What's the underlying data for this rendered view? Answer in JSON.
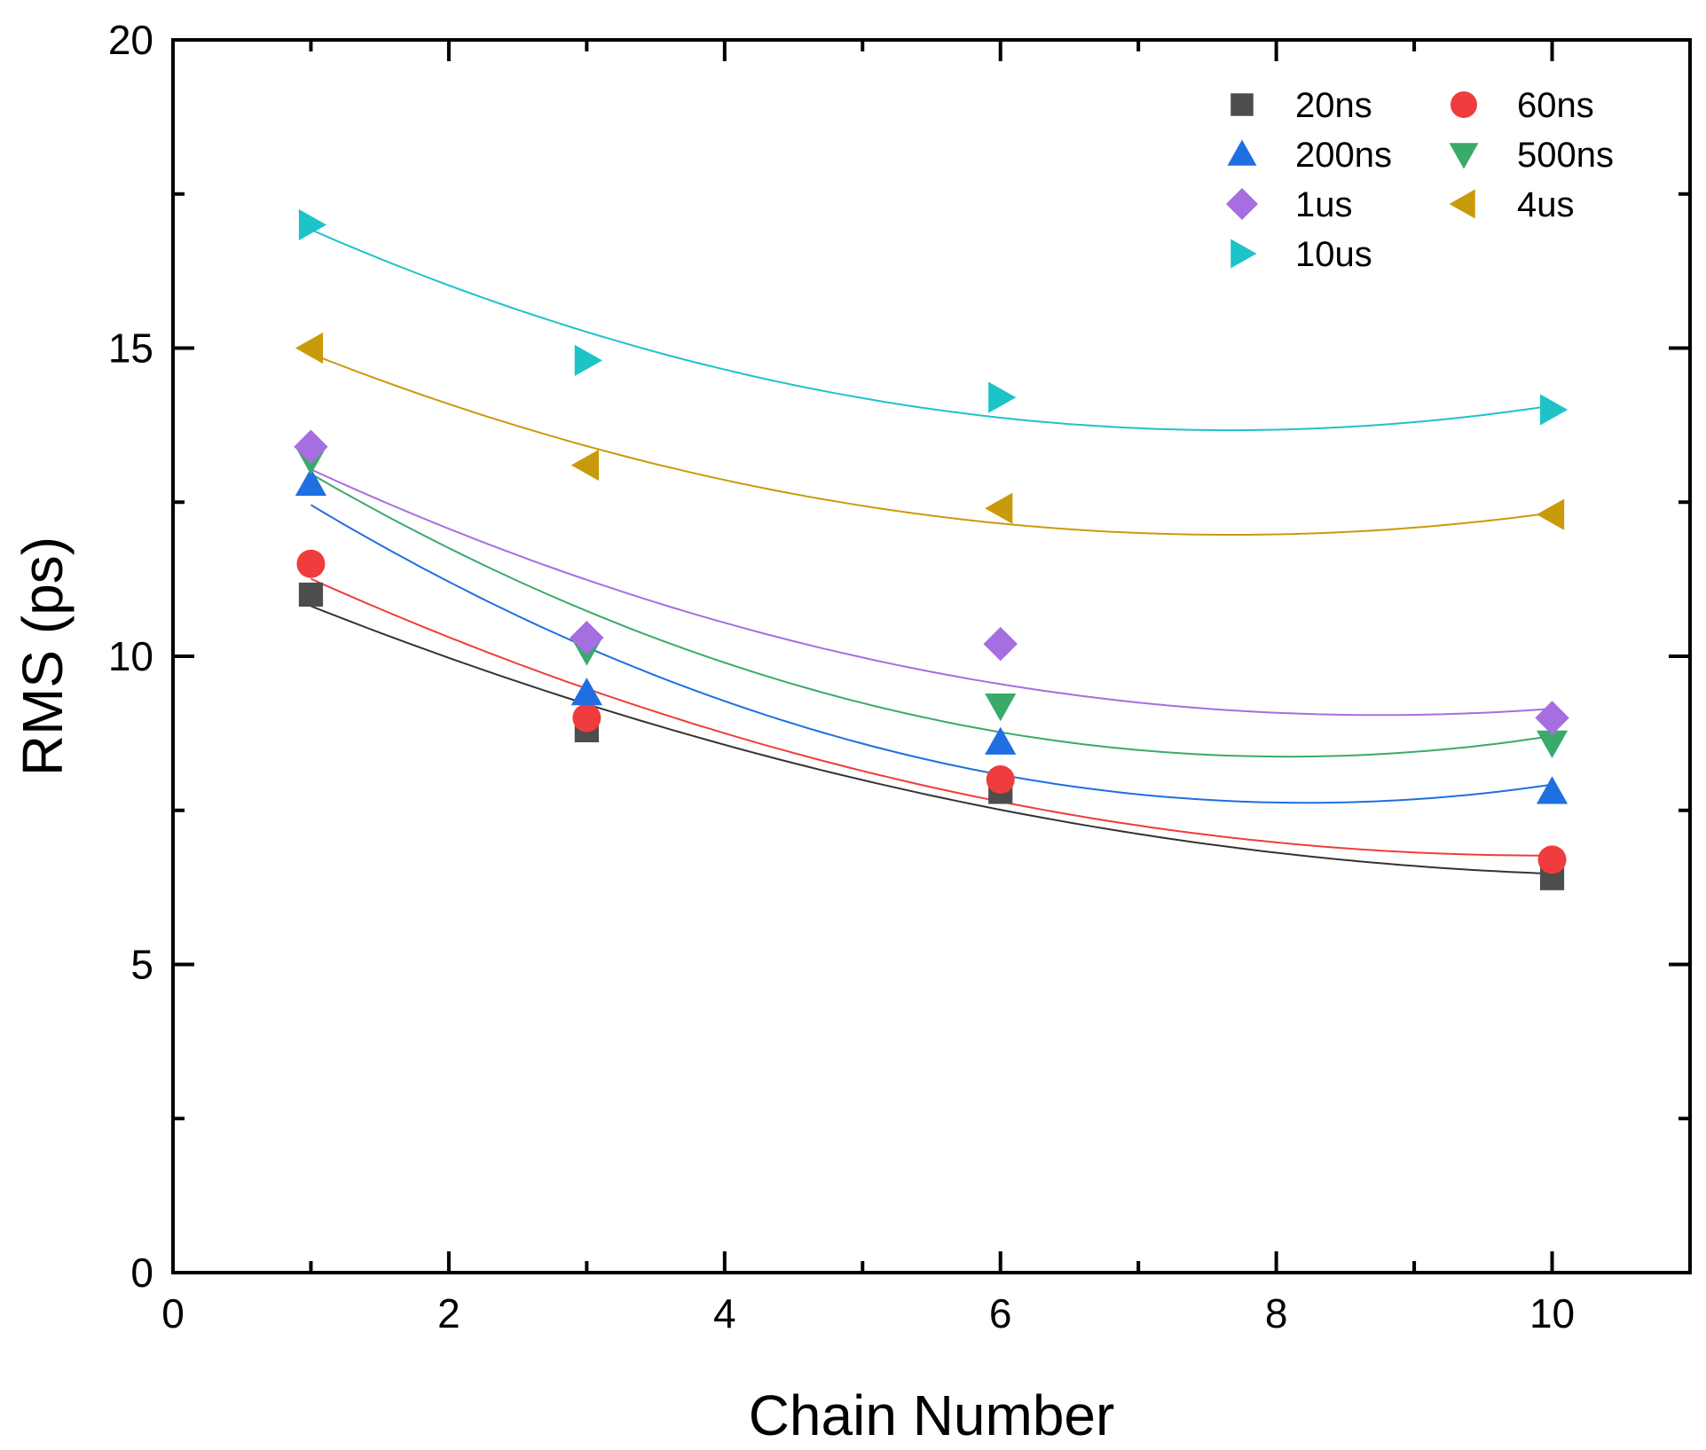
{
  "chart_data": {
    "type": "scatter",
    "title": "",
    "xlabel": "Chain Number",
    "ylabel": "RMS (ps)",
    "xlim": [
      0,
      11
    ],
    "ylim": [
      0,
      20
    ],
    "x_major_ticks": [
      0,
      2,
      4,
      6,
      8,
      10
    ],
    "x_minor_ticks": [
      1,
      3,
      5,
      7,
      9,
      11
    ],
    "y_major_ticks": [
      0,
      5,
      10,
      15,
      20
    ],
    "y_minor_ticks": [
      2.5,
      7.5,
      12.5,
      17.5
    ],
    "grid": false,
    "legend_position": "top-right",
    "x": [
      1,
      3,
      6,
      10
    ],
    "series": [
      {
        "name": "20ns",
        "marker": "square",
        "color": "#4d4d4d",
        "fit_color": "#333333",
        "values": [
          11.0,
          8.8,
          7.8,
          6.4
        ],
        "fit": [
          10.82,
          9.21,
          7.52,
          6.47
        ]
      },
      {
        "name": "60ns",
        "marker": "circle",
        "color": "#f03c3c",
        "fit_color": "#f03c3c",
        "values": [
          11.5,
          9.0,
          8.0,
          6.7
        ],
        "fit": [
          11.25,
          9.49,
          7.63,
          6.77
        ]
      },
      {
        "name": "200ns",
        "marker": "triangle-up",
        "color": "#1f6fe0",
        "fit_color": "#1f6fe0",
        "values": [
          12.8,
          9.4,
          8.6,
          7.8
        ],
        "fit": [
          12.45,
          10.16,
          8.07,
          7.92
        ]
      },
      {
        "name": "500ns",
        "marker": "triangle-down",
        "color": "#3aaa6a",
        "fit_color": "#3aaa6a",
        "values": [
          13.2,
          10.1,
          9.2,
          8.6
        ],
        "fit": [
          12.98,
          10.69,
          8.8,
          8.7
        ]
      },
      {
        "name": "1us",
        "marker": "diamond",
        "color": "#a66ee0",
        "fit_color": "#a66ee0",
        "values": [
          13.4,
          10.3,
          10.2,
          9.0
        ],
        "fit": [
          13.06,
          11.18,
          9.59,
          9.14
        ]
      },
      {
        "name": "4us",
        "marker": "triangle-left",
        "color": "#c99a0a",
        "fit_color": "#c99a0a",
        "values": [
          15.0,
          13.1,
          12.4,
          12.3
        ],
        "fit": [
          14.93,
          13.36,
          12.19,
          12.32
        ]
      },
      {
        "name": "10us",
        "marker": "triangle-right",
        "color": "#1ec3c8",
        "fit_color": "#1ec3c8",
        "values": [
          17.0,
          14.8,
          14.2,
          14.0
        ],
        "fit": [
          16.94,
          15.22,
          13.9,
          14.06
        ]
      }
    ],
    "legend_order": [
      "20ns",
      "60ns",
      "200ns",
      "500ns",
      "1us",
      "4us",
      "10us"
    ]
  }
}
